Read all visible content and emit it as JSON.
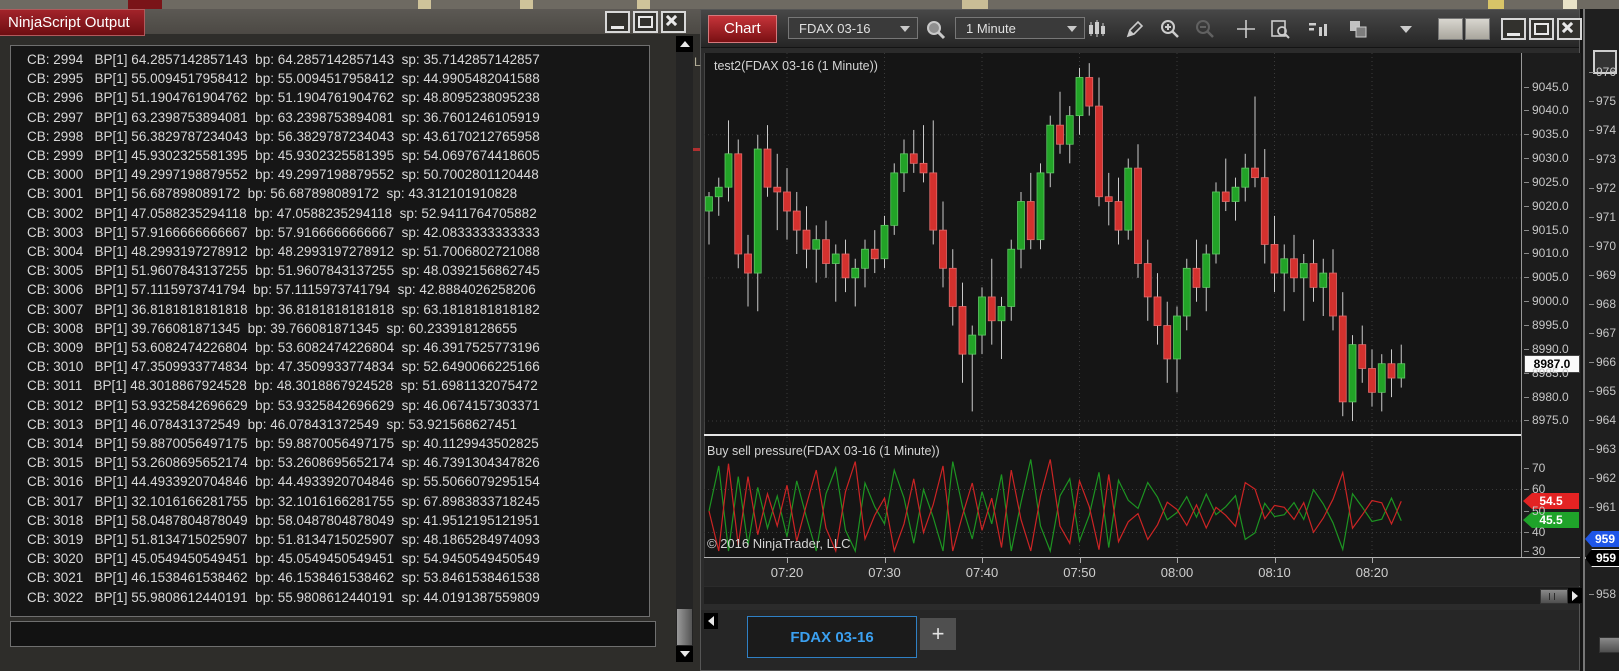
{
  "output_window": {
    "title": "NinjaScript Output",
    "window_buttons": [
      "minimize",
      "maximize",
      "close"
    ],
    "labels": {
      "cb": "CB:",
      "bp_bracket": "BP[1]",
      "bp": "bp:",
      "sp": "sp:"
    },
    "rows": [
      {
        "cb": "2994",
        "bp": "64.2857142857143",
        "sp": "35.7142857142857"
      },
      {
        "cb": "2995",
        "bp": "55.0094517958412",
        "sp": "44.9905482041588"
      },
      {
        "cb": "2996",
        "bp": "51.1904761904762",
        "sp": "48.8095238095238"
      },
      {
        "cb": "2997",
        "bp": "63.2398753894081",
        "sp": "36.7601246105919"
      },
      {
        "cb": "2998",
        "bp": "56.3829787234043",
        "sp": "43.6170212765958"
      },
      {
        "cb": "2999",
        "bp": "45.9302325581395",
        "sp": "54.0697674418605"
      },
      {
        "cb": "3000",
        "bp": "49.2997198879552",
        "sp": "50.7002801120448"
      },
      {
        "cb": "3001",
        "bp": "56.687898089172",
        "sp": "43.312101910828"
      },
      {
        "cb": "3002",
        "bp": "47.0588235294118",
        "sp": "52.9411764705882"
      },
      {
        "cb": "3003",
        "bp": "57.9166666666667",
        "sp": "42.0833333333333"
      },
      {
        "cb": "3004",
        "bp": "48.2993197278912",
        "sp": "51.7006802721088"
      },
      {
        "cb": "3005",
        "bp": "51.9607843137255",
        "sp": "48.0392156862745"
      },
      {
        "cb": "3006",
        "bp": "57.1115973741794",
        "sp": "42.8884026258206"
      },
      {
        "cb": "3007",
        "bp": "36.8181818181818",
        "sp": "63.1818181818182"
      },
      {
        "cb": "3008",
        "bp": "39.766081871345",
        "sp": "60.233918128655"
      },
      {
        "cb": "3009",
        "bp": "53.6082474226804",
        "sp": "46.3917525773196"
      },
      {
        "cb": "3010",
        "bp": "47.3509933774834",
        "sp": "52.6490066225166"
      },
      {
        "cb": "3011",
        "bp": "48.3018867924528",
        "sp": "51.6981132075472"
      },
      {
        "cb": "3012",
        "bp": "53.9325842696629",
        "sp": "46.0674157303371"
      },
      {
        "cb": "3013",
        "bp": "46.078431372549",
        "sp": "53.921568627451"
      },
      {
        "cb": "3014",
        "bp": "59.8870056497175",
        "sp": "40.1129943502825"
      },
      {
        "cb": "3015",
        "bp": "53.2608695652174",
        "sp": "46.7391304347826"
      },
      {
        "cb": "3016",
        "bp": "44.4933920704846",
        "sp": "55.5066079295154"
      },
      {
        "cb": "3017",
        "bp": "32.1016166281755",
        "sp": "67.8983833718245"
      },
      {
        "cb": "3018",
        "bp": "58.0487804878049",
        "sp": "41.9512195121951"
      },
      {
        "cb": "3019",
        "bp": "51.8134715025907",
        "sp": "48.1865284974093"
      },
      {
        "cb": "3020",
        "bp": "45.0549450549451",
        "sp": "54.9450549450549"
      },
      {
        "cb": "3021",
        "bp": "46.1538461538462",
        "sp": "53.8461538461538"
      },
      {
        "cb": "3022",
        "bp": "55.9808612440191",
        "sp": "44.0191387559809"
      }
    ]
  },
  "chart_window": {
    "title": "Chart",
    "toolbar": {
      "instrument": "FDAX 03-16",
      "interval": "1 Minute",
      "icons": [
        "chart-style",
        "drawing-tools",
        "zoom-in",
        "zoom-out",
        "crosshair",
        "data-box",
        "indicators",
        "bring-to-front",
        "more-tools"
      ]
    },
    "window_buttons": [
      "minimize",
      "maximize",
      "close"
    ],
    "price_panel_label": "test2(FDAX 03-16 (1 Minute))",
    "indicator_panel_label": "Buy sell pressure(FDAX 03-16 (1 Minute))",
    "copyright": "© 2016 NinjaTrader, LLC",
    "price_axis_ticks": [
      "9045.0",
      "9040.0",
      "9035.0",
      "9030.0",
      "9025.0",
      "9020.0",
      "9015.0",
      "9010.0",
      "9005.0",
      "9000.0",
      "8995.0",
      "8990.0",
      "8985.0",
      "8980.0",
      "8975.0"
    ],
    "last_price_badge": "8987.0",
    "indicator_axis_ticks": [
      "70",
      "60",
      "50",
      "40",
      "30"
    ],
    "sell_badge": "54.5",
    "buy_badge": "45.5",
    "time_ticks": [
      {
        "label": "07:20",
        "index": 8
      },
      {
        "label": "07:30",
        "index": 18
      },
      {
        "label": "07:40",
        "index": 28
      },
      {
        "label": "07:50",
        "index": 38
      },
      {
        "label": "08:00",
        "index": 48
      },
      {
        "label": "08:10",
        "index": 58
      },
      {
        "label": "08:20",
        "index": 68
      }
    ],
    "tab": "FDAX 03-16",
    "add_tab": "+"
  },
  "background_window": {
    "axis_labels": [
      "976",
      "975",
      "974",
      "973",
      "972",
      "971",
      "970",
      "969",
      "968",
      "967",
      "966",
      "965",
      "964",
      "963",
      "962",
      "961",
      null,
      null,
      "958"
    ],
    "blue_badge": "959",
    "black_badge": "959"
  },
  "chart_data": [
    {
      "type": "candlestick",
      "title": "test2(FDAX 03-16 (1 Minute))",
      "instrument": "FDAX 03-16",
      "interval": "1 Minute",
      "ylim": [
        8972,
        9052
      ],
      "y_ticks": [
        9045,
        9040,
        9035,
        9030,
        9025,
        9020,
        9015,
        9010,
        9005,
        9000,
        8995,
        8990,
        8985,
        8980,
        8975
      ],
      "x_tick_labels": [
        "07:20",
        "07:30",
        "07:40",
        "07:50",
        "08:00",
        "08:10",
        "08:20"
      ],
      "last_price": 8987.0,
      "up_color": "#22a327",
      "down_color": "#d4312e",
      "grid_price_lines": [
        9035,
        9005,
        8975
      ],
      "candles_ohlc": [
        [
          9019,
          9023,
          9012,
          9022
        ],
        [
          9022,
          9026,
          9018,
          9024
        ],
        [
          9024,
          9038,
          9021,
          9031
        ],
        [
          9031,
          9034,
          9007,
          9010
        ],
        [
          9010,
          9014,
          8999,
          9006
        ],
        [
          9006,
          9035,
          8998,
          9032
        ],
        [
          9032,
          9037,
          9022,
          9024
        ],
        [
          9024,
          9031,
          9015,
          9023
        ],
        [
          9023,
          9028,
          9013,
          9019
        ],
        [
          9019,
          9023,
          9010,
          9015
        ],
        [
          9015,
          9020,
          9007,
          9011
        ],
        [
          9011,
          9016,
          9004,
          9013
        ],
        [
          9013,
          9017,
          9005,
          9008
        ],
        [
          9008,
          9012,
          9000,
          9010
        ],
        [
          9010,
          9013,
          9002,
          9005
        ],
        [
          9005,
          9009,
          8999,
          9007
        ],
        [
          9007,
          9013,
          9003,
          9011
        ],
        [
          9011,
          9015,
          9006,
          9009
        ],
        [
          9009,
          9018,
          9007,
          9016
        ],
        [
          9016,
          9029,
          9014,
          9027
        ],
        [
          9027,
          9034,
          9023,
          9031
        ],
        [
          9031,
          9036,
          9027,
          9029
        ],
        [
          9029,
          9037,
          9025,
          9027
        ],
        [
          9027,
          9038,
          9012,
          9015
        ],
        [
          9015,
          9021,
          9003,
          9007
        ],
        [
          9007,
          9011,
          8995,
          8999
        ],
        [
          8999,
          9004,
          8983,
          8989
        ],
        [
          8989,
          8995,
          8977,
          8993
        ],
        [
          8993,
          9003,
          8989,
          9001
        ],
        [
          9001,
          9009,
          8991,
          8996
        ],
        [
          8996,
          9001,
          8988,
          8999
        ],
        [
          8999,
          9013,
          8996,
          9011
        ],
        [
          9011,
          9023,
          9007,
          9021
        ],
        [
          9021,
          9027,
          9011,
          9013
        ],
        [
          9013,
          9029,
          9011,
          9027
        ],
        [
          9027,
          9039,
          9024,
          9037
        ],
        [
          9037,
          9044,
          9031,
          9033
        ],
        [
          9033,
          9041,
          9029,
          9039
        ],
        [
          9039,
          9049,
          9035,
          9047
        ],
        [
          9047,
          9050,
          9039,
          9041
        ],
        [
          9041,
          9047,
          9020,
          9022
        ],
        [
          9022,
          9027,
          9016,
          9021
        ],
        [
          9021,
          9026,
          9012,
          9015
        ],
        [
          9015,
          9030,
          9013,
          9028
        ],
        [
          9028,
          9033,
          9005,
          9008
        ],
        [
          9008,
          9013,
          8996,
          9001
        ],
        [
          9001,
          9006,
          8991,
          8995
        ],
        [
          8995,
          9000,
          8983,
          8988
        ],
        [
          8988,
          8999,
          8981,
          8997
        ],
        [
          8997,
          9009,
          8994,
          9007
        ],
        [
          9007,
          9013,
          9000,
          9003
        ],
        [
          9003,
          9012,
          8998,
          9010
        ],
        [
          9010,
          9025,
          9008,
          9023
        ],
        [
          9023,
          9030,
          9019,
          9021
        ],
        [
          9021,
          9026,
          9017,
          9024
        ],
        [
          9024,
          9031,
          9021,
          9028
        ],
        [
          9028,
          9043,
          9024,
          9026
        ],
        [
          9026,
          9032,
          9008,
          9012
        ],
        [
          9012,
          9018,
          9002,
          9006
        ],
        [
          9006,
          9012,
          8998,
          9009
        ],
        [
          9009,
          9014,
          9002,
          9005
        ],
        [
          9005,
          9010,
          8996,
          9008
        ],
        [
          9008,
          9013,
          9000,
          9003
        ],
        [
          9003,
          9009,
          8997,
          9006
        ],
        [
          9006,
          9011,
          8994,
          8997
        ],
        [
          8997,
          9002,
          8976,
          8979
        ],
        [
          8979,
          8993,
          8975,
          8991
        ],
        [
          8991,
          8995,
          8983,
          8986
        ],
        [
          8986,
          8990,
          8978,
          8981
        ],
        [
          8981,
          8989,
          8977,
          8987
        ],
        [
          8987,
          8990,
          8980,
          8984
        ],
        [
          8984,
          8991,
          8982,
          8987
        ]
      ]
    },
    {
      "type": "line",
      "title": "Buy sell pressure(FDAX 03-16 (1 Minute))",
      "ylim": [
        15,
        85
      ],
      "y_ticks": [
        70,
        60,
        50,
        40,
        30
      ],
      "grid_value_lines": [
        60,
        40
      ],
      "current_values": {
        "sell": 54.5,
        "buy": 45.5
      },
      "series": [
        {
          "name": "buy pressure",
          "color": "#1d9422",
          "values": [
            50,
            71,
            28,
            66,
            34,
            61,
            42,
            57,
            38,
            64,
            47,
            31,
            58,
            70,
            41,
            27,
            63,
            52,
            44,
            69,
            56,
            35,
            60,
            47,
            29,
            73,
            52,
            37,
            59,
            44,
            67,
            31,
            54,
            74,
            43,
            26,
            57,
            65,
            36,
            48,
            68,
            33,
            64.3,
            55.0,
            51.2,
            63.2,
            56.4,
            45.9,
            49.3,
            56.7,
            47.1,
            57.9,
            48.3,
            52.0,
            57.1,
            36.8,
            39.8,
            53.6,
            47.4,
            48.3,
            53.9,
            46.1,
            59.9,
            53.3,
            44.5,
            32.1,
            58.0,
            51.8,
            45.1,
            46.2,
            56.0,
            45.5
          ]
        },
        {
          "name": "sell pressure",
          "color": "#cc2424",
          "values": [
            50,
            29,
            72,
            34,
            66,
            39,
            58,
            43,
            62,
            36,
            53,
            69,
            42,
            30,
            59,
            73,
            37,
            48,
            56,
            31,
            44,
            65,
            40,
            53,
            71,
            27,
            48,
            63,
            41,
            56,
            33,
            69,
            46,
            26,
            57,
            74,
            43,
            35,
            64,
            52,
            32,
            67,
            35.7,
            45.0,
            48.8,
            36.8,
            43.6,
            54.1,
            50.7,
            43.3,
            52.9,
            42.1,
            51.7,
            48.0,
            42.9,
            63.2,
            60.2,
            46.4,
            52.6,
            51.7,
            46.1,
            53.9,
            40.1,
            46.7,
            55.5,
            67.9,
            42.0,
            48.2,
            54.9,
            53.8,
            44.0,
            54.5
          ]
        }
      ]
    }
  ]
}
